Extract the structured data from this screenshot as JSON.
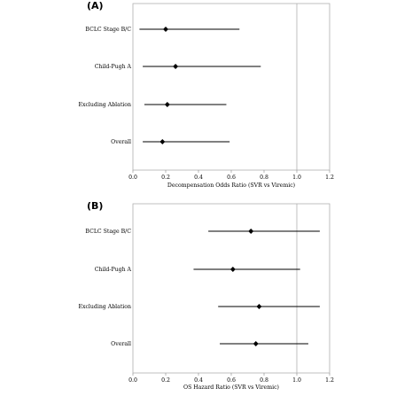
{
  "chart_data": [
    {
      "type": "forest",
      "panel_label": "(A)",
      "xlabel": "Decompensation Odds Ratio (SVR vs Viremic)",
      "xlim": [
        0.0,
        1.2
      ],
      "xticks": [
        0.0,
        0.2,
        0.4,
        0.6,
        0.8,
        1.0,
        1.2
      ],
      "tick_labels": [
        "0.0",
        "0.2",
        "0.4",
        "0.6",
        "0.8",
        "1.0",
        "1.2"
      ],
      "reference_line": 1.0,
      "rows": [
        {
          "label": "BCLC Stage B/C",
          "estimate": 0.2,
          "lower": 0.04,
          "upper": 0.65
        },
        {
          "label": "Child-Pugh A",
          "estimate": 0.26,
          "lower": 0.06,
          "upper": 0.78
        },
        {
          "label": "Excluding Ablation",
          "estimate": 0.21,
          "lower": 0.07,
          "upper": 0.57
        },
        {
          "label": "Overall",
          "estimate": 0.18,
          "lower": 0.06,
          "upper": 0.59
        }
      ]
    },
    {
      "type": "forest",
      "panel_label": "(B)",
      "xlabel": "OS Hazard Ratio (SVR vs Viremic)",
      "xlim": [
        0.0,
        1.2
      ],
      "xticks": [
        0.0,
        0.2,
        0.4,
        0.6,
        0.8,
        1.0,
        1.2
      ],
      "tick_labels": [
        "0.0",
        "0.2",
        "0.4",
        "0.6",
        "0.8",
        "1.0",
        "1.2"
      ],
      "reference_line": 1.0,
      "rows": [
        {
          "label": "BCLC Stage B/C",
          "estimate": 0.72,
          "lower": 0.46,
          "upper": 1.14
        },
        {
          "label": "Child-Pugh A",
          "estimate": 0.61,
          "lower": 0.37,
          "upper": 1.02
        },
        {
          "label": "Excluding Ablation",
          "estimate": 0.77,
          "lower": 0.52,
          "upper": 1.14
        },
        {
          "label": "Overall",
          "estimate": 0.75,
          "lower": 0.53,
          "upper": 1.07
        }
      ]
    }
  ]
}
